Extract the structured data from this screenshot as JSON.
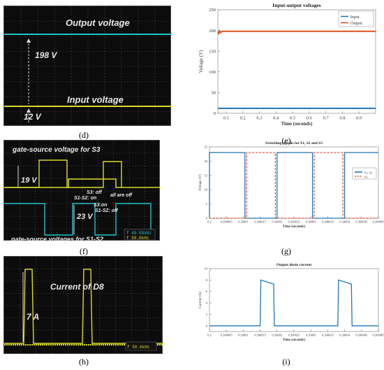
{
  "labels": {
    "d": "(d)",
    "e": "(e)",
    "f": "(f)",
    "g": "(g)",
    "h": "(h)",
    "i": "(i)"
  },
  "panel_d": {
    "output_label": "Output voltage",
    "input_label": "Input voltage",
    "delta_label": "198 V",
    "input_level_label": "12 V",
    "colors": {
      "output": "#22c3c9",
      "input": "#d9d92a"
    }
  },
  "panel_f": {
    "top_label": "gate-source voltage for S3",
    "bottom_label": "gate-source voltages for S1-S2",
    "v19": "19 V",
    "v23": "23 V",
    "s3_off": "S3: off",
    "s1s2_on": "S1-S2: on",
    "all_off": "all are off",
    "s3_on": "S3:on",
    "s1s2_off": "S1-S2: off",
    "readout_1": "f 49.99kHz",
    "readout_2": "f 50.0kHz"
  },
  "panel_h": {
    "current_label": "Current of D8",
    "amp_label": "7 A",
    "readout": "f 50.0kHz"
  },
  "chart_data": [
    {
      "id": "e",
      "type": "line",
      "title": "Input-output voltages",
      "xlabel": "Time (seconds)",
      "ylabel": "Voltage (V)",
      "xlim": [
        0.05,
        1.0
      ],
      "ylim": [
        0,
        250
      ],
      "x_ticks": [
        0.1,
        0.2,
        0.3,
        0.4,
        0.5,
        0.6,
        0.7,
        0.8,
        0.9
      ],
      "y_ticks": [
        0,
        50,
        100,
        150,
        200,
        250
      ],
      "legend": "top-right",
      "series": [
        {
          "name": "Input",
          "color": "#1f77b4",
          "x": [
            0.05,
            1.0
          ],
          "y": [
            12,
            12
          ]
        },
        {
          "name": "Output",
          "color": "#d9531e",
          "x": [
            0.05,
            0.055,
            0.06,
            0.065,
            0.07,
            0.08,
            1.0
          ],
          "y": [
            197,
            193,
            199,
            195,
            197,
            198,
            198
          ]
        }
      ]
    },
    {
      "id": "g",
      "type": "line",
      "title": "Switching signals for S1, S2 and S3",
      "xlabel": "Time (seconds)",
      "ylabel": "Voltage (V)",
      "xlim": [
        0.2,
        0.200005
      ],
      "ylim": [
        0,
        25
      ],
      "x_tick_labels": [
        "0.2",
        "0.200005",
        "0.20001",
        "0.200015",
        "0.20002",
        "0.200025",
        "0.20003",
        "0.200035",
        "0.20004",
        "0.200045",
        "0.200005"
      ],
      "y_ticks": [
        0,
        5,
        10,
        15,
        20,
        25
      ],
      "legend": "right",
      "series": [
        {
          "name": "S1, S2",
          "color": "#1f77b4",
          "style": "solid",
          "x": [
            0,
            0,
            1.05,
            1.05,
            2.0,
            2.0,
            3.05,
            3.05,
            4.0,
            4.0,
            5.0
          ],
          "y": [
            0,
            23,
            23,
            0,
            0,
            23,
            23,
            0,
            0,
            23,
            23
          ]
        },
        {
          "name": "S3",
          "color": "#e0503a",
          "style": "dashed",
          "x": [
            0,
            1.1,
            1.1,
            1.95,
            1.95,
            3.1,
            3.1,
            3.95,
            3.95,
            5.0
          ],
          "y": [
            0,
            0,
            23,
            23,
            0,
            0,
            23,
            23,
            0,
            0
          ]
        }
      ]
    },
    {
      "id": "i",
      "type": "line",
      "title": "Output diode current",
      "xlabel": "Time (seconds)",
      "ylabel": "Current (A)",
      "xlim": [
        0.2,
        0.200005
      ],
      "ylim": [
        -1,
        10
      ],
      "x_tick_labels": [
        "0.2",
        "0.200005",
        "0.20001",
        "0.200015",
        "0.20002",
        "0.200025",
        "0.20003",
        "0.200035",
        "0.20004",
        "0.200045",
        "0.200005"
      ],
      "y_ticks": [
        0,
        2,
        4,
        6,
        8,
        10
      ],
      "series": [
        {
          "name": "",
          "color": "#1f77b4",
          "x": [
            0,
            1.5,
            1.52,
            1.9,
            1.92,
            3.8,
            3.82,
            4.2,
            4.22,
            5.0
          ],
          "y": [
            0,
            0,
            8,
            7.3,
            0,
            0,
            8,
            7.3,
            0,
            0
          ]
        }
      ]
    }
  ]
}
